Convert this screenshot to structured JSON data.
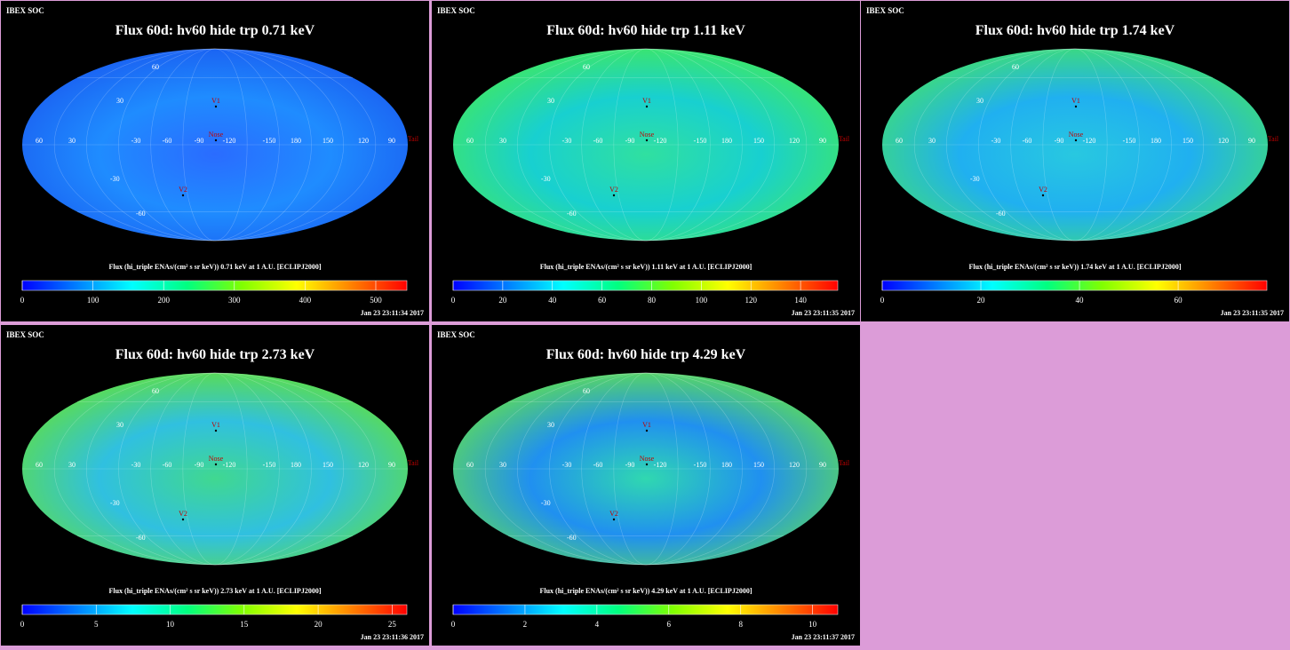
{
  "panels": [
    {
      "header": "IBEX SOC",
      "title": "Flux 60d: hv60 hide trp 0.71 keV",
      "colorbar": {
        "label": "Flux (hi_triple ENAs/(cm² s sr keV)) 0.71 keV at 1 A.U. [ECLIPJ2000]",
        "range": [
          0,
          544
        ],
        "ticks": [
          0,
          100,
          200,
          300,
          400,
          500
        ]
      },
      "timestamp": "Jan 23 23:11:34 2017",
      "lon_labels": [
        "60",
        "30",
        "-30",
        "-60",
        "-90",
        "-120",
        "-150",
        "180",
        "150",
        "120",
        "90"
      ],
      "lat_labels": [
        "60",
        "30",
        "-30",
        "-60"
      ],
      "markers": [
        "V1",
        "Nose",
        "V2",
        "Tail"
      ]
    },
    {
      "header": "IBEX SOC",
      "title": "Flux 60d: hv60 hide trp 1.11 keV",
      "colorbar": {
        "label": "Flux (hi_triple ENAs/(cm² s sr keV)) 1.11 keV at 1 A.U. [ECLIPJ2000]",
        "range": [
          0,
          155
        ],
        "ticks": [
          0,
          20,
          40,
          60,
          80,
          100,
          120,
          140
        ]
      },
      "timestamp": "Jan 23 23:11:35 2017",
      "lon_labels": [
        "60",
        "30",
        "-30",
        "-60",
        "-90",
        "-120",
        "-150",
        "180",
        "150",
        "120",
        "90"
      ],
      "lat_labels": [
        "60",
        "30",
        "-30",
        "-60"
      ],
      "markers": [
        "V1",
        "Nose",
        "V2",
        "Tail"
      ]
    },
    {
      "header": "IBEX SOC",
      "title": "Flux 60d: hv60 hide trp 1.74 keV",
      "colorbar": {
        "label": "Flux (hi_triple ENAs/(cm² s sr keV)) 1.74 keV at 1 A.U. [ECLIPJ2000]",
        "range": [
          0,
          78
        ],
        "ticks": [
          0,
          20,
          40,
          60
        ]
      },
      "timestamp": "Jan 23 23:11:35 2017",
      "lon_labels": [
        "60",
        "30",
        "-30",
        "-60",
        "-90",
        "-120",
        "-150",
        "180",
        "150",
        "120",
        "90"
      ],
      "lat_labels": [
        "60",
        "30",
        "-30",
        "-60"
      ],
      "markers": [
        "V1",
        "Nose",
        "V2",
        "Tail"
      ]
    },
    {
      "header": "IBEX SOC",
      "title": "Flux 60d: hv60 hide trp 2.73 keV",
      "colorbar": {
        "label": "Flux (hi_triple ENAs/(cm² s sr keV)) 2.73 keV at 1 A.U. [ECLIPJ2000]",
        "range": [
          0,
          26
        ],
        "ticks": [
          0,
          5,
          10,
          15,
          20,
          25
        ]
      },
      "timestamp": "Jan 23 23:11:36 2017",
      "lon_labels": [
        "60",
        "30",
        "-30",
        "-60",
        "-90",
        "-120",
        "-150",
        "180",
        "150",
        "120",
        "90"
      ],
      "lat_labels": [
        "60",
        "30",
        "-30",
        "-60"
      ],
      "markers": [
        "V1",
        "Nose",
        "V2",
        "Tail"
      ]
    },
    {
      "header": "IBEX SOC",
      "title": "Flux 60d: hv60 hide trp 4.29 keV",
      "colorbar": {
        "label": "Flux (hi_triple ENAs/(cm² s sr keV)) 4.29 keV at 1 A.U. [ECLIPJ2000]",
        "range": [
          0,
          10.7
        ],
        "ticks": [
          0,
          2,
          4,
          6,
          8,
          10
        ]
      },
      "timestamp": "Jan 23 23:11:37 2017",
      "lon_labels": [
        "60",
        "30",
        "-30",
        "-60",
        "-90",
        "-120",
        "-150",
        "180",
        "150",
        "120",
        "90"
      ],
      "lat_labels": [
        "60",
        "30",
        "-30",
        "-60"
      ],
      "markers": [
        "V1",
        "Nose",
        "V2",
        "Tail"
      ]
    }
  ]
}
